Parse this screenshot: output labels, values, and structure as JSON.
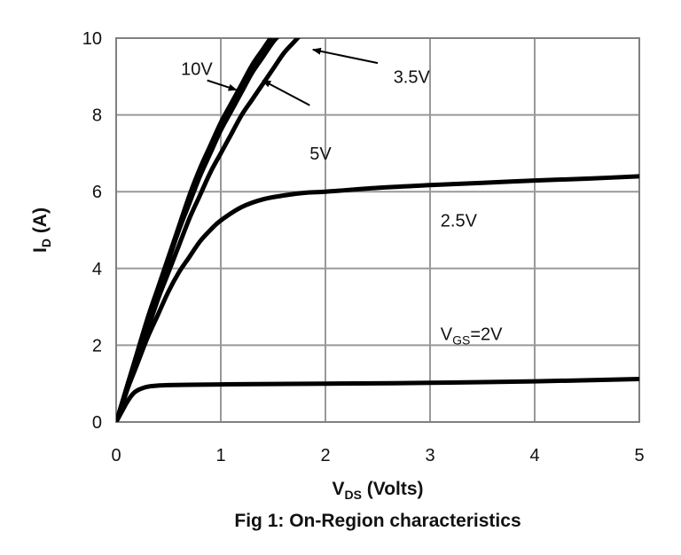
{
  "chart_data": {
    "type": "line",
    "caption": "Fig 1: On-Region characteristics",
    "xlabel": {
      "main": "V",
      "sub": "DS",
      "rest": " (Volts)"
    },
    "ylabel": {
      "main": "I",
      "sub": "D",
      "rest": " (A)"
    },
    "xlim": [
      0,
      5
    ],
    "ylim": [
      0,
      10
    ],
    "xticks": [
      "0",
      "1",
      "2",
      "3",
      "4",
      "5"
    ],
    "yticks": [
      "0",
      "2",
      "4",
      "6",
      "8",
      "10"
    ],
    "grid": true,
    "colors": {
      "line": "#000000",
      "grid": "#999999",
      "frame": "#808080"
    },
    "series": [
      {
        "name": "10V",
        "x": [
          0,
          0.1,
          0.2,
          0.3,
          0.4,
          0.5,
          0.6,
          0.7,
          0.8,
          0.9,
          1.0,
          1.1,
          1.2,
          1.3,
          1.4,
          1.5
        ],
        "y": [
          0,
          0.9,
          1.8,
          2.7,
          3.5,
          4.3,
          5.1,
          5.9,
          6.6,
          7.2,
          7.8,
          8.3,
          8.8,
          9.3,
          9.7,
          10.1
        ]
      },
      {
        "name": "5V",
        "x": [
          0,
          0.1,
          0.2,
          0.3,
          0.4,
          0.5,
          0.6,
          0.7,
          0.8,
          0.9,
          1.0,
          1.1,
          1.2,
          1.3,
          1.4,
          1.5,
          1.6
        ],
        "y": [
          0,
          0.8,
          1.7,
          2.6,
          3.4,
          4.2,
          5.0,
          5.7,
          6.4,
          7.0,
          7.6,
          8.1,
          8.6,
          9.1,
          9.5,
          9.9,
          10.2
        ]
      },
      {
        "name": "3.5V",
        "x": [
          0,
          0.1,
          0.2,
          0.3,
          0.4,
          0.5,
          0.6,
          0.7,
          0.8,
          0.9,
          1.0,
          1.1,
          1.2,
          1.3,
          1.4,
          1.5,
          1.6,
          1.7,
          1.8
        ],
        "y": [
          0,
          0.8,
          1.6,
          2.4,
          3.2,
          3.9,
          4.6,
          5.3,
          5.9,
          6.5,
          7.0,
          7.5,
          8.0,
          8.4,
          8.8,
          9.2,
          9.6,
          9.9,
          10.2
        ]
      },
      {
        "name": "2.5V",
        "x": [
          0,
          0.1,
          0.2,
          0.3,
          0.4,
          0.5,
          0.6,
          0.7,
          0.8,
          0.9,
          1.0,
          1.2,
          1.4,
          1.6,
          1.8,
          2.0,
          2.5,
          3.0,
          3.5,
          4.0,
          4.5,
          5.0
        ],
        "y": [
          0,
          0.8,
          1.5,
          2.2,
          2.8,
          3.4,
          3.9,
          4.3,
          4.7,
          5.0,
          5.25,
          5.6,
          5.8,
          5.9,
          5.97,
          6.0,
          6.1,
          6.17,
          6.23,
          6.29,
          6.34,
          6.4
        ]
      },
      {
        "name": "VGS=2V",
        "x": [
          0,
          0.05,
          0.1,
          0.15,
          0.2,
          0.3,
          0.4,
          0.5,
          0.7,
          1.0,
          1.5,
          2.0,
          3.0,
          4.0,
          5.0
        ],
        "y": [
          0,
          0.25,
          0.5,
          0.7,
          0.82,
          0.92,
          0.95,
          0.96,
          0.97,
          0.98,
          0.99,
          1.0,
          1.02,
          1.06,
          1.12
        ]
      }
    ],
    "annotations": [
      {
        "label": "10V",
        "series": "10V",
        "label_pos": [
          0.62,
          9.2
        ],
        "arrow_from": [
          0.87,
          8.9
        ],
        "arrow_to": [
          1.15,
          8.65
        ]
      },
      {
        "label": "3.5V",
        "series": "3.5V",
        "label_pos": [
          2.65,
          9.0
        ],
        "arrow_from": [
          2.5,
          9.35
        ],
        "arrow_to": [
          1.88,
          9.7
        ]
      },
      {
        "label": "5V",
        "series": "5V",
        "label_pos": [
          1.85,
          7.0
        ],
        "arrow_from": [
          1.85,
          8.25
        ],
        "arrow_to": [
          1.4,
          8.9
        ]
      },
      {
        "label": "2.5V",
        "series": "2.5V",
        "label_pos": [
          3.1,
          5.25
        ]
      },
      {
        "label_main": "V",
        "label_sub": "GS",
        "label_rest": "=2V",
        "series": "VGS=2V",
        "label_pos": [
          3.1,
          2.3
        ]
      }
    ]
  }
}
